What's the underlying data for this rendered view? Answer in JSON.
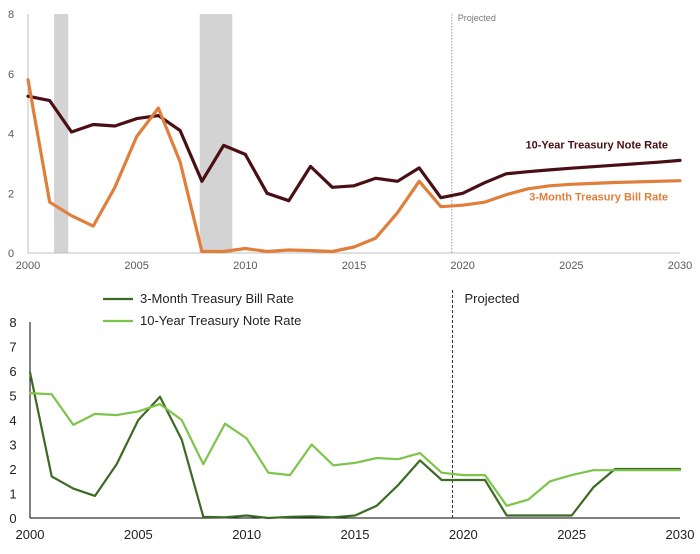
{
  "chart_data": [
    {
      "type": "line",
      "title": "",
      "xlabel": "",
      "ylabel": "",
      "xlim": [
        2000,
        2030
      ],
      "ylim": [
        0,
        8
      ],
      "x_ticks": [
        2000,
        2005,
        2010,
        2015,
        2020,
        2025,
        2030
      ],
      "y_ticks": [
        0,
        2,
        4,
        6,
        8
      ],
      "grid": false,
      "recessions": [
        [
          2001.2,
          2001.85
        ],
        [
          2007.9,
          2009.4
        ]
      ],
      "projected": {
        "x": 2019.5,
        "label": "Projected"
      },
      "x": [
        2000,
        2001,
        2002,
        2003,
        2004,
        2005,
        2006,
        2007,
        2008,
        2009,
        2010,
        2011,
        2012,
        2013,
        2014,
        2015,
        2016,
        2017,
        2018,
        2019,
        2020,
        2021,
        2022,
        2023,
        2024,
        2025,
        2026,
        2027,
        2028,
        2029,
        2030
      ],
      "series": [
        {
          "name": "10-Year Treasury Note Rate",
          "color": "#4a0f14",
          "values": [
            5.25,
            5.1,
            4.05,
            4.3,
            4.25,
            4.5,
            4.6,
            4.1,
            2.4,
            3.6,
            3.3,
            2.0,
            1.75,
            2.9,
            2.2,
            2.25,
            2.5,
            2.4,
            2.85,
            1.85,
            2.0,
            2.35,
            2.65,
            2.72,
            2.78,
            2.84,
            2.89,
            2.94,
            2.99,
            3.04,
            3.1
          ]
        },
        {
          "name": "3-Month Treasury Bill Rate",
          "color": "#e07f3c",
          "values": [
            5.8,
            1.7,
            1.25,
            0.9,
            2.2,
            3.9,
            4.85,
            3.05,
            0.05,
            0.05,
            0.15,
            0.05,
            0.1,
            0.08,
            0.05,
            0.2,
            0.5,
            1.35,
            2.4,
            1.55,
            1.6,
            1.7,
            1.95,
            2.15,
            2.25,
            2.3,
            2.33,
            2.36,
            2.38,
            2.4,
            2.42
          ]
        }
      ]
    },
    {
      "type": "line",
      "title": "",
      "xlabel": "",
      "ylabel": "",
      "xlim": [
        2000,
        2030
      ],
      "ylim": [
        0,
        8
      ],
      "x_ticks": [
        2000,
        2005,
        2010,
        2015,
        2020,
        2025,
        2030
      ],
      "y_ticks": [
        0,
        1,
        2,
        3,
        4,
        5,
        6,
        7,
        8
      ],
      "grid": false,
      "legend_position": "top-left",
      "projected": {
        "x": 2019.5,
        "label": "Projected"
      },
      "x": [
        2000,
        2001,
        2002,
        2003,
        2004,
        2005,
        2006,
        2007,
        2008,
        2009,
        2010,
        2011,
        2012,
        2013,
        2014,
        2015,
        2016,
        2017,
        2018,
        2019,
        2020,
        2021,
        2022,
        2023,
        2024,
        2025,
        2026,
        2027,
        2028,
        2029,
        2030
      ],
      "series": [
        {
          "name": "3-Month Treasury Bill Rate",
          "color": "#3d6b24",
          "values": [
            5.95,
            1.7,
            1.2,
            0.9,
            2.2,
            4.0,
            4.95,
            3.2,
            0.05,
            0.03,
            0.1,
            0.0,
            0.05,
            0.07,
            0.03,
            0.1,
            0.5,
            1.35,
            2.35,
            1.55,
            1.55,
            1.55,
            0.1,
            0.1,
            0.1,
            0.1,
            1.25,
            2.0,
            2.0,
            2.0,
            2.0
          ]
        },
        {
          "name": "10-Year Treasury Note Rate",
          "color": "#7dc44a",
          "values": [
            5.1,
            5.05,
            3.8,
            4.25,
            4.2,
            4.35,
            4.65,
            4.0,
            2.2,
            3.85,
            3.25,
            1.85,
            1.75,
            3.0,
            2.15,
            2.25,
            2.45,
            2.4,
            2.65,
            1.85,
            1.75,
            1.75,
            0.5,
            0.75,
            1.5,
            1.75,
            1.95,
            1.95,
            1.95,
            1.95,
            1.95
          ]
        }
      ]
    }
  ]
}
